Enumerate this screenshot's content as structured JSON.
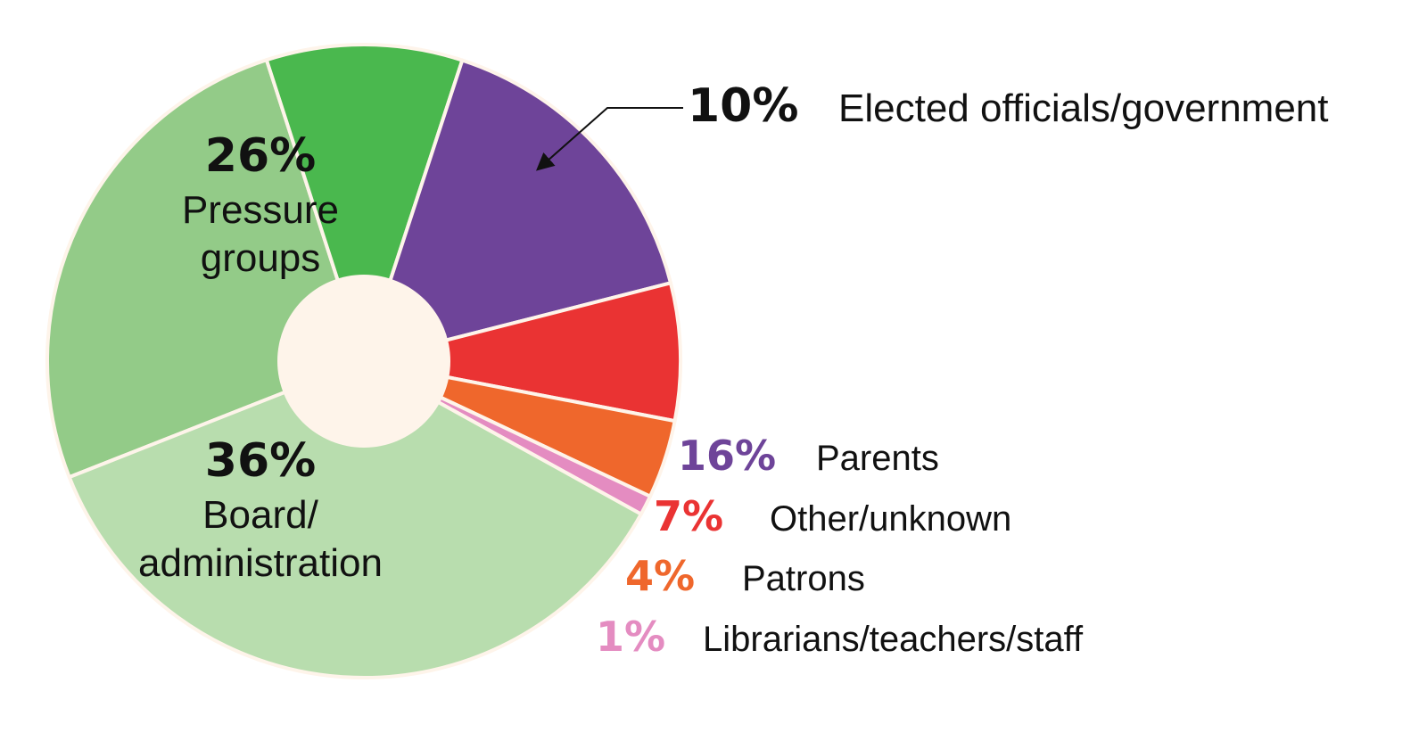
{
  "chart_data": {
    "type": "pie",
    "title": "",
    "start_side": "clockwise from bottom-left",
    "slices": [
      {
        "label_lines": [
          "Pressure",
          "groups"
        ],
        "value": 26,
        "percent_text": "26%",
        "color": "#93cb88",
        "label_color": "#111111",
        "label_placement": "inside"
      },
      {
        "label_lines": [
          "Elected officials/government"
        ],
        "value": 10,
        "percent_text": "10%",
        "color": "#4ab84e",
        "label_color": "#111111",
        "label_placement": "outside-arrow"
      },
      {
        "label_lines": [
          "Parents"
        ],
        "value": 16,
        "percent_text": "16%",
        "color": "#6e4499",
        "label_color": "#6e4499",
        "label_placement": "outside"
      },
      {
        "label_lines": [
          "Other/unknown"
        ],
        "value": 7,
        "percent_text": "7%",
        "color": "#ea3333",
        "label_color": "#ea3333",
        "label_placement": "outside"
      },
      {
        "label_lines": [
          "Patrons"
        ],
        "value": 4,
        "percent_text": "4%",
        "color": "#ef672c",
        "label_color": "#ef672c",
        "label_placement": "outside"
      },
      {
        "label_lines": [
          "Librarians/teachers/staff"
        ],
        "value": 1,
        "percent_text": "1%",
        "color": "#e48cc1",
        "label_color": "#e48cc1",
        "label_placement": "outside"
      },
      {
        "label_lines": [
          "Board/",
          "administration"
        ],
        "value": 36,
        "percent_text": "36%",
        "color": "#b8ddae",
        "label_color": "#111111",
        "label_placement": "inside"
      }
    ],
    "center_hole_color": "#fef4ea",
    "outline_color": "#fef4ea"
  }
}
